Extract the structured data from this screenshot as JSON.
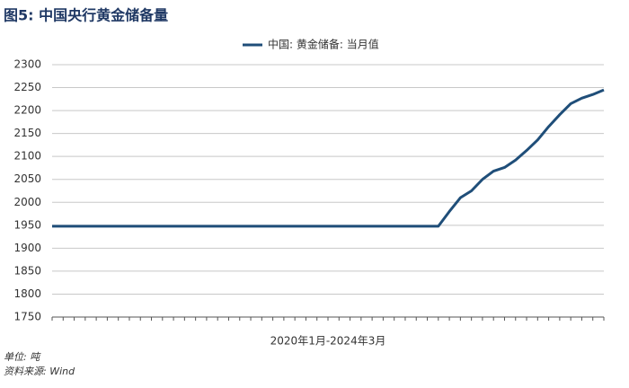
{
  "chart_data": {
    "type": "line",
    "title": "图5: 中国央行黄金储备量",
    "x_label": "2020年1月-2024年3月",
    "categories": [
      null,
      null,
      null,
      null,
      null,
      null,
      null,
      null,
      null,
      null,
      null,
      null,
      null,
      null,
      null,
      null,
      null,
      null,
      null,
      null,
      null,
      null,
      null,
      null,
      null,
      null,
      null,
      null,
      null,
      null,
      null,
      null,
      null,
      null,
      null,
      null,
      null,
      null,
      null,
      null,
      null,
      null,
      null,
      null,
      null,
      null,
      null,
      null,
      null,
      null,
      null
    ],
    "series": [
      {
        "name": "中国: 黄金储备: 当月值",
        "color": "#1f4e79",
        "values": [
          1948,
          1948,
          1948,
          1948,
          1948,
          1948,
          1948,
          1948,
          1948,
          1948,
          1948,
          1948,
          1948,
          1948,
          1948,
          1948,
          1948,
          1948,
          1948,
          1948,
          1948,
          1948,
          1948,
          1948,
          1948,
          1948,
          1948,
          1948,
          1948,
          1948,
          1948,
          1948,
          1948,
          1948,
          1948,
          1948,
          1980,
          2010,
          2025,
          2050,
          2068,
          2076,
          2092,
          2113,
          2136,
          2165,
          2191,
          2215,
          2227,
          2235,
          2245
        ]
      }
    ],
    "ylim": [
      1750,
      2300
    ],
    "yticks": [
      1750,
      1800,
      1850,
      1900,
      1950,
      2000,
      2050,
      2100,
      2150,
      2200,
      2250,
      2300
    ],
    "grid": true,
    "legend": "top",
    "unit_note": "单位: 吨",
    "source": "资料来源: Wind"
  }
}
